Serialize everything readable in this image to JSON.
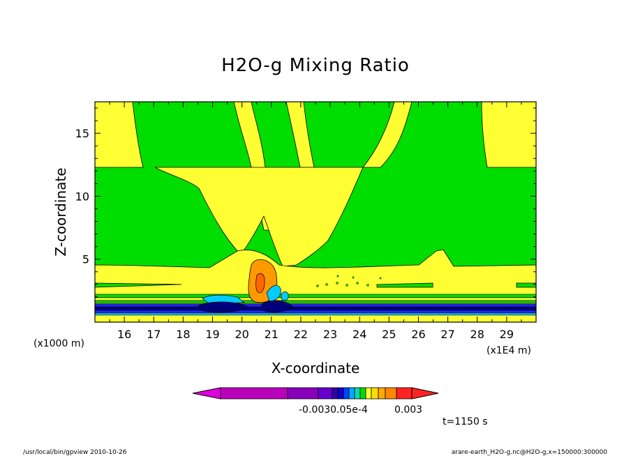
{
  "chart_data": {
    "type": "heatmap",
    "title": "H2O-g Mixing Ratio",
    "xlabel": "X-coordinate",
    "ylabel": "Z-coordinate",
    "x_unit": "(x1E4 m)",
    "y_unit": "(x1000 m)",
    "x_ticks": [
      "16",
      "17",
      "18",
      "19",
      "20",
      "21",
      "22",
      "23",
      "24",
      "25",
      "26",
      "27",
      "28",
      "29"
    ],
    "y_ticks": [
      "5",
      "10",
      "15"
    ],
    "xlim": [
      15.0,
      30.0
    ],
    "ylim": [
      0.0,
      17.5
    ],
    "colorbar_labels": [
      "-0.0030.05e-4",
      "0.003"
    ],
    "palette": {
      "green": "#00dd00",
      "yellow": "#ffff33",
      "orange": "#ff9900",
      "cyan": "#00ccff",
      "navy": "#00007a",
      "blue": "#2222ff",
      "magenta": "#bb00bb",
      "purple": "#7700bb",
      "red": "#ff2222"
    },
    "colorbar_colors": [
      "#dd00dd",
      "#bb00bb",
      "#8800bb",
      "#6600cc",
      "#3300aa",
      "#1100cc",
      "#0044ff",
      "#00aaff",
      "#00ddaa",
      "#00dd00",
      "#ffff33",
      "#ffdd00",
      "#ffaa00",
      "#ff8800",
      "#ff2222"
    ],
    "time_label": "t=1150 s"
  },
  "footer": {
    "left": "/usr/local/bin/gpview   2010-10-26",
    "right": "arare-earth_H2O-g.nc@H2O-g,x=150000:300000"
  }
}
